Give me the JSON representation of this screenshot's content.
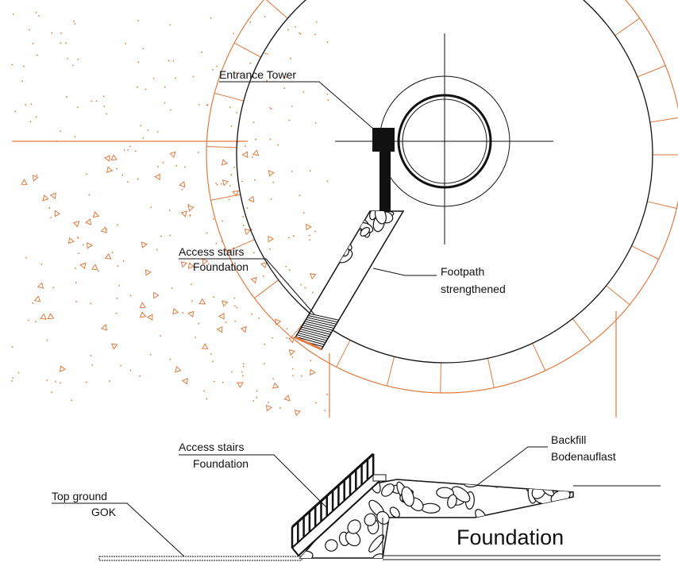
{
  "plan": {
    "entrance_tower": "Entrance Tower",
    "access_stairs": [
      "Access stairs",
      "Foundation"
    ],
    "footpath": [
      "Footpath",
      "strengthened"
    ]
  },
  "section": {
    "access_stairs": [
      "Access stairs",
      "Foundation"
    ],
    "backfill": [
      "Backfill",
      "Bodenauflast"
    ],
    "top_ground": [
      "Top ground",
      "GOK"
    ],
    "foundation": "Foundation"
  }
}
